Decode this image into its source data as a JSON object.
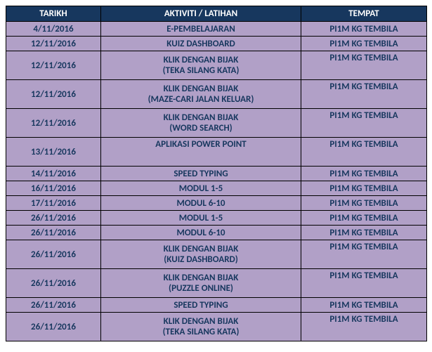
{
  "columns": {
    "date": "TARIKH",
    "activity": "AKTIVITI / LATIHAN",
    "place": "TEMPAT"
  },
  "rows": [
    {
      "date": "4/11/2016",
      "activity_line1": "E-PEMBELAJARAN",
      "activity_line2": "",
      "place": "PI1M KG TEMBILA",
      "height": "single"
    },
    {
      "date": "12/11/2016",
      "activity_line1": "KUIZ DASHBOARD",
      "activity_line2": "",
      "place": "PI1M KG TEMBILA",
      "height": "single"
    },
    {
      "date": "12/11/2016",
      "activity_line1": "KLIK DENGAN BIJAK",
      "activity_line2": "(TEKA SILANG KATA)",
      "place": "PI1M KG TEMBILA",
      "height": "double"
    },
    {
      "date": "12/11/2016",
      "activity_line1": "KLIK DENGAN BIJAK",
      "activity_line2": "(MAZE-CARI JALAN KELUAR)",
      "place": "PI1M KG TEMBILA",
      "height": "double"
    },
    {
      "date": "12/11/2016",
      "activity_line1": "KLIK DENGAN BIJAK",
      "activity_line2": "(WORD SEARCH)",
      "place": "PI1M KG TEMBILA",
      "height": "double"
    },
    {
      "date": "13/11/2016",
      "activity_line1": "APLIKASI POWER POINT",
      "activity_line2": "",
      "place": "PI1M KG TEMBILA",
      "height": "double"
    },
    {
      "date": "14/11/2016",
      "activity_line1": "SPEED TYPING",
      "activity_line2": "",
      "place": "PI1M KG TEMBILA",
      "height": "single"
    },
    {
      "date": "16/11/2016",
      "activity_line1": "MODUL 1-5",
      "activity_line2": "",
      "place": "PI1M KG TEMBILA",
      "height": "single"
    },
    {
      "date": "17/11/2016",
      "activity_line1": "MODUL 6-10",
      "activity_line2": "",
      "place": "PI1M KG TEMBILA",
      "height": "single"
    },
    {
      "date": "26/11/2016",
      "activity_line1": "MODUL 1-5",
      "activity_line2": "",
      "place": "PI1M KG TEMBILA",
      "height": "single"
    },
    {
      "date": "26/11/2016",
      "activity_line1": "MODUL 6-10",
      "activity_line2": "",
      "place": "PI1M KG TEMBILA",
      "height": "single"
    },
    {
      "date": "26/11/2016",
      "activity_line1": "KLIK DENGAN BIJAK",
      "activity_line2": "(KUIZ DASHBOARD)",
      "place": "PI1M KG TEMBILA",
      "height": "double"
    },
    {
      "date": "26/11/2016",
      "activity_line1": "KLIK DENGAN BIJAK",
      "activity_line2": "(PUZZLE ONLINE)",
      "place": "PI1M KG TEMBILA",
      "height": "double"
    },
    {
      "date": "26/11/2016",
      "activity_line1": "SPEED TYPING",
      "activity_line2": "",
      "place": "PI1M KG TEMBILA",
      "height": "single"
    },
    {
      "date": "26/11/2016",
      "activity_line1": "KLIK DENGAN BIJAK",
      "activity_line2": "(TEKA SILANG KATA)",
      "place": "PI1M KG TEMBILA",
      "height": "double"
    }
  ]
}
